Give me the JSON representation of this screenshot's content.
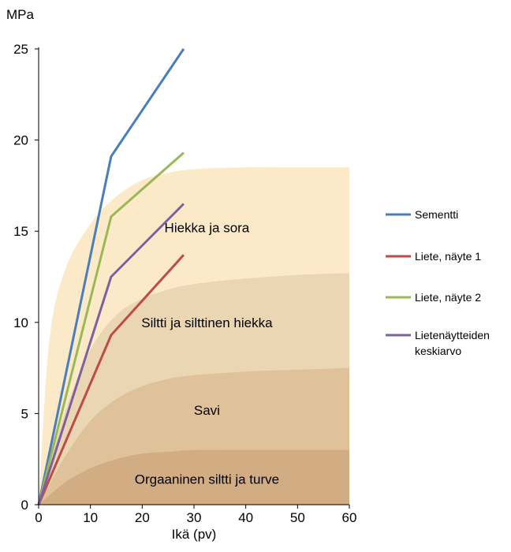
{
  "chart_data": {
    "type": "line",
    "y_unit": "MPa",
    "xlabel": "Ikä (pv)",
    "xlim": [
      0,
      60
    ],
    "ylim": [
      0,
      25
    ],
    "x_ticks": [
      0,
      10,
      20,
      30,
      40,
      50,
      60
    ],
    "y_ticks": [
      0,
      5,
      10,
      15,
      20,
      25
    ],
    "grid": false,
    "legend_position": "right",
    "series": [
      {
        "name": "Sementti",
        "color": "#4a7ebb",
        "x": [
          0,
          14,
          28
        ],
        "y": [
          0,
          19.1,
          25.0
        ]
      },
      {
        "name": "Liete, näyte 1",
        "color": "#be4b48",
        "x": [
          0,
          14,
          28
        ],
        "y": [
          0,
          9.3,
          13.7
        ]
      },
      {
        "name": "Liete, näyte 2",
        "color": "#98b954",
        "x": [
          0,
          14,
          28
        ],
        "y": [
          0,
          15.8,
          19.3
        ]
      },
      {
        "name": "Lietenäytteiden keskiarvo",
        "color": "#7d60a0",
        "x": [
          0,
          14,
          28
        ],
        "y": [
          0,
          12.5,
          16.5
        ]
      }
    ],
    "legend": [
      {
        "lines": [
          "Sementti"
        ],
        "color": "#4a7ebb"
      },
      {
        "lines": [
          "Liete, näyte 1"
        ],
        "color": "#be4b48"
      },
      {
        "lines": [
          "Liete, näyte 2"
        ],
        "color": "#98b954"
      },
      {
        "lines": [
          "Lietenäytteiden",
          "keskiarvo"
        ],
        "color": "#7d60a0"
      }
    ],
    "bands": [
      {
        "label": "Hiekka ja sora",
        "upper": 18.5,
        "lower_label_level": 15.2,
        "color": "#fce9c8",
        "bounds": {
          "x": [
            0,
            2,
            5,
            10,
            15,
            20,
            25,
            30,
            40,
            50,
            60
          ],
          "y": [
            0,
            8.8,
            12.8,
            15.4,
            16.9,
            17.8,
            18.2,
            18.4,
            18.5,
            18.5,
            18.5
          ]
        }
      },
      {
        "label": "Siltti ja silttinen hiekka",
        "label_level": 10.0,
        "color": "#ead6b2",
        "bounds": {
          "x": [
            0,
            5,
            10,
            15,
            20,
            25,
            30,
            40,
            50,
            60
          ],
          "y": [
            0,
            5.0,
            8.5,
            10.4,
            11.3,
            11.8,
            12.1,
            12.4,
            12.6,
            12.7
          ]
        }
      },
      {
        "label": "Savi",
        "label_level": 5.2,
        "color": "#dfc29a",
        "bounds": {
          "x": [
            0,
            5,
            10,
            15,
            20,
            25,
            30,
            40,
            50,
            60
          ],
          "y": [
            0,
            2.6,
            4.6,
            5.8,
            6.5,
            6.9,
            7.1,
            7.3,
            7.4,
            7.5
          ]
        }
      },
      {
        "label": "Orgaaninen siltti ja turve",
        "label_level": 1.4,
        "color": "#d2ac82",
        "bounds": {
          "x": [
            0,
            5,
            10,
            15,
            20,
            25,
            30,
            40,
            50,
            60
          ],
          "y": [
            0,
            1.2,
            2.0,
            2.5,
            2.8,
            2.9,
            3.0,
            3.0,
            3.0,
            3.0
          ]
        }
      }
    ]
  }
}
